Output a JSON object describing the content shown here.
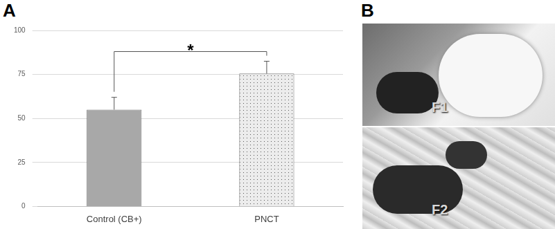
{
  "chart_data": {
    "type": "bar",
    "categories": [
      "Control (CB+)",
      "PNCT"
    ],
    "values": [
      55,
      75.5
    ],
    "errors": [
      7,
      7
    ],
    "colors": [
      "#a8a8a8",
      "#ececec"
    ],
    "ylim": [
      0,
      100
    ],
    "yticks": [
      0,
      25,
      50,
      75,
      100
    ],
    "grid": true,
    "annotations": [
      {
        "text": "*",
        "between": [
          "Control (CB+)",
          "PNCT"
        ]
      }
    ]
  },
  "panel_labels": [
    "A",
    "B"
  ],
  "photo_labels": [
    "F1",
    "F2"
  ]
}
